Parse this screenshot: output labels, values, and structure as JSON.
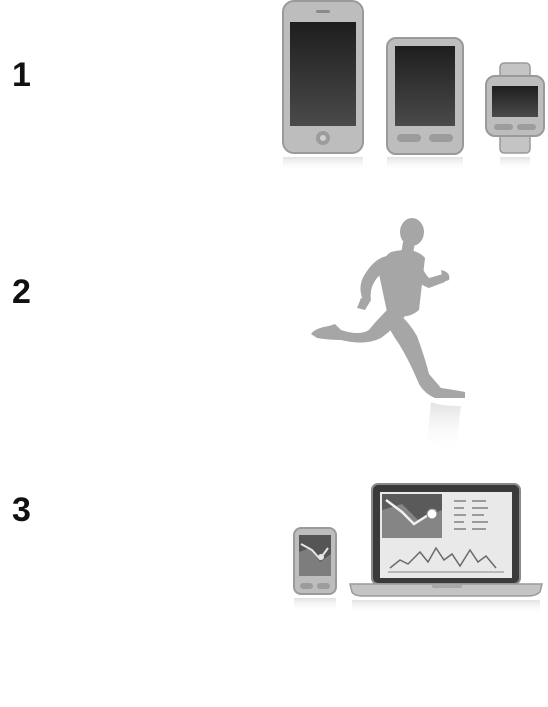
{
  "steps": [
    {
      "number": "1",
      "illustration": "devices-icon"
    },
    {
      "number": "2",
      "illustration": "runner-icon"
    },
    {
      "number": "3",
      "illustration": "sync-dashboard-icon"
    }
  ],
  "colors": {
    "device_body": "#b9b9b9",
    "screen_dark": "#2a2a2a",
    "runner": "#a6a6a6",
    "text": "#111111"
  }
}
